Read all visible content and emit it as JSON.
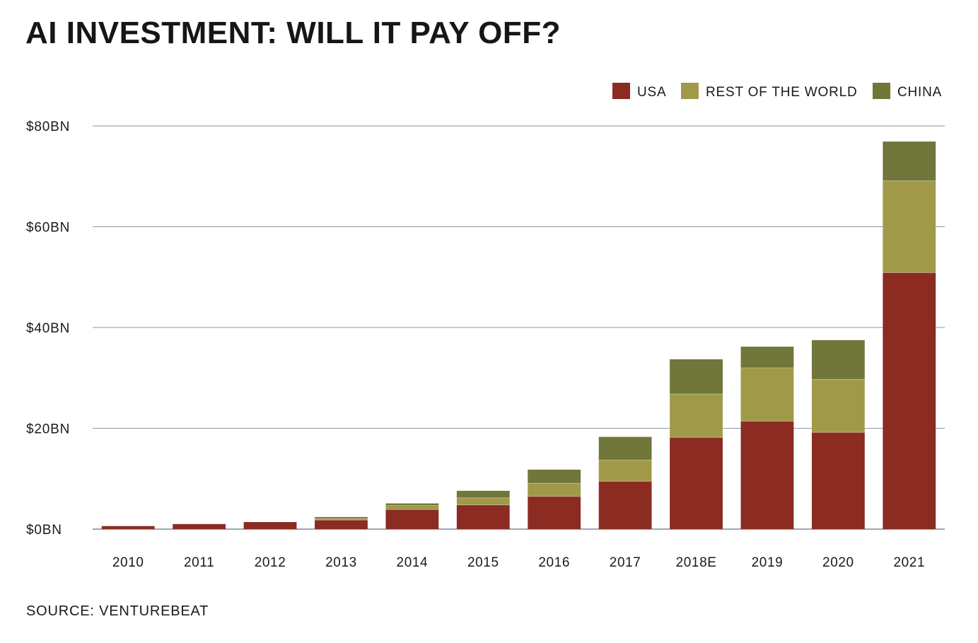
{
  "chart_data": {
    "type": "bar",
    "stacked": true,
    "title": "AI INVESTMENT: WILL IT PAY OFF?",
    "source": "SOURCE: VENTUREBEAT",
    "xlabel": "",
    "ylabel": "",
    "ylim": [
      0,
      80
    ],
    "y_ticks": [
      {
        "value": 0,
        "label": "$0BN"
      },
      {
        "value": 20,
        "label": "$20BN"
      },
      {
        "value": 40,
        "label": "$40BN"
      },
      {
        "value": 60,
        "label": "$60BN"
      },
      {
        "value": 80,
        "label": "$80BN"
      }
    ],
    "grid": true,
    "legend_position": "top-right",
    "categories": [
      "2010",
      "2011",
      "2012",
      "2013",
      "2014",
      "2015",
      "2016",
      "2017",
      "2018E",
      "2019",
      "2020",
      "2021"
    ],
    "series": [
      {
        "name": "USA",
        "color": "#8b2b22",
        "values": [
          0.6,
          1.0,
          1.4,
          1.8,
          3.9,
          4.8,
          6.5,
          9.5,
          18.2,
          21.4,
          19.2,
          50.9
        ]
      },
      {
        "name": "REST OF THE WORLD",
        "color": "#a09a48",
        "values": [
          0.0,
          0.0,
          0.0,
          0.3,
          0.8,
          1.4,
          2.6,
          4.2,
          8.6,
          10.6,
          10.5,
          18.2
        ]
      },
      {
        "name": "CHINA",
        "color": "#71763a",
        "values": [
          0.0,
          0.0,
          0.0,
          0.3,
          0.4,
          1.4,
          2.7,
          4.6,
          6.9,
          4.2,
          7.8,
          7.8
        ]
      }
    ]
  }
}
